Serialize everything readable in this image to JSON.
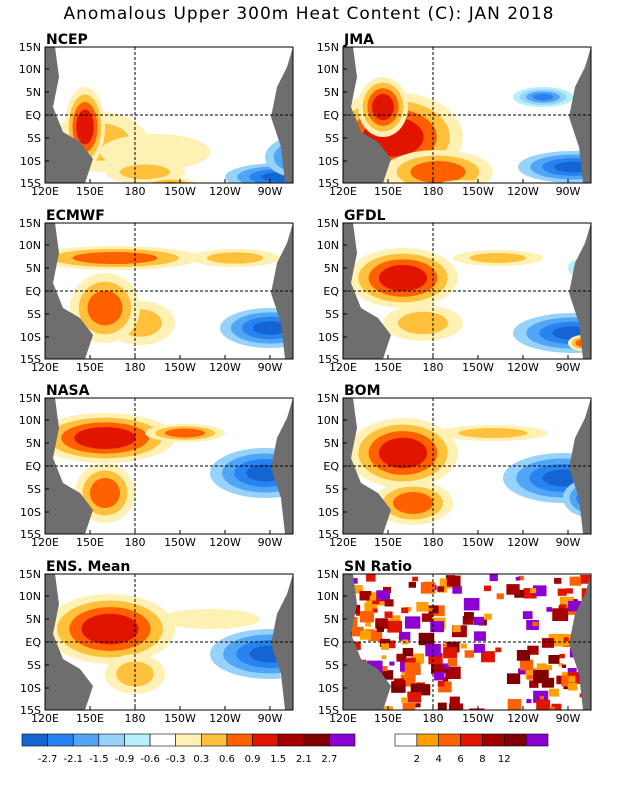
{
  "title": "Anomalous Upper 300m Heat Content (C): JAN 2018",
  "x_ticks": [
    "120E",
    "150E",
    "180",
    "150W",
    "120W",
    "90W"
  ],
  "y_ticks": [
    "15N",
    "10N",
    "5N",
    "EQ",
    "5S",
    "10S",
    "15S"
  ],
  "panels": [
    {
      "name": "NCEP",
      "kind": "anom",
      "warm": [
        [
          55,
          95,
          48,
          30,
          7
        ],
        [
          110,
          105,
          55,
          18,
          6
        ],
        [
          100,
          125,
          40,
          12,
          7
        ],
        [
          125,
          140,
          30,
          10,
          8
        ],
        [
          40,
          80,
          20,
          40,
          9
        ]
      ],
      "cold": [
        [
          235,
          130,
          55,
          14,
          7
        ],
        [
          260,
          110,
          40,
          22,
          6
        ]
      ]
    },
    {
      "name": "JMA",
      "kind": "anom",
      "warm": [
        [
          50,
          90,
          70,
          45,
          9
        ],
        [
          95,
          125,
          55,
          22,
          8
        ],
        [
          120,
          145,
          35,
          12,
          8
        ],
        [
          40,
          60,
          25,
          30,
          9
        ]
      ],
      "cold": [
        [
          230,
          120,
          55,
          16,
          6
        ],
        [
          200,
          50,
          30,
          10,
          5
        ]
      ]
    },
    {
      "name": "ECMWF",
      "kind": "anom",
      "warm": [
        [
          70,
          35,
          85,
          12,
          8
        ],
        [
          190,
          35,
          45,
          9,
          7
        ],
        [
          95,
          100,
          35,
          22,
          7
        ],
        [
          60,
          85,
          35,
          35,
          8
        ]
      ],
      "cold": [
        [
          225,
          105,
          50,
          20,
          6
        ],
        [
          270,
          60,
          20,
          25,
          5
        ]
      ]
    },
    {
      "name": "GFDL",
      "kind": "anom",
      "warm": [
        [
          60,
          55,
          55,
          30,
          9
        ],
        [
          155,
          35,
          45,
          8,
          7
        ],
        [
          80,
          100,
          40,
          18,
          7
        ],
        [
          240,
          120,
          15,
          8,
          8
        ]
      ],
      "cold": [
        [
          230,
          110,
          60,
          20,
          6
        ],
        [
          250,
          45,
          25,
          12,
          5
        ]
      ]
    },
    {
      "name": "NASA",
      "kind": "anom",
      "warm": [
        [
          60,
          40,
          70,
          25,
          9
        ],
        [
          140,
          35,
          40,
          9,
          8
        ],
        [
          60,
          95,
          30,
          30,
          8
        ]
      ],
      "cold": [
        [
          220,
          75,
          55,
          25,
          6
        ],
        [
          265,
          85,
          25,
          30,
          6
        ]
      ]
    },
    {
      "name": "BOM",
      "kind": "anom",
      "warm": [
        [
          60,
          55,
          55,
          35,
          9
        ],
        [
          150,
          35,
          55,
          8,
          7
        ],
        [
          70,
          105,
          40,
          22,
          8
        ]
      ],
      "cold": [
        [
          220,
          80,
          60,
          25,
          6
        ],
        [
          250,
          100,
          30,
          20,
          6
        ]
      ]
    },
    {
      "name": "ENS. Mean",
      "kind": "anom",
      "warm": [
        [
          65,
          55,
          65,
          35,
          9
        ],
        [
          165,
          45,
          50,
          10,
          6
        ],
        [
          90,
          100,
          30,
          20,
          7
        ]
      ],
      "cold": [
        [
          225,
          80,
          60,
          25,
          6
        ],
        [
          260,
          100,
          25,
          15,
          5
        ]
      ]
    },
    {
      "name": "SN Ratio",
      "kind": "sn"
    }
  ],
  "colorbar_anom": {
    "colors": [
      "#1464d2",
      "#2882f0",
      "#50a5f5",
      "#96d2fa",
      "#b4f0fa",
      "#ffffff",
      "#fff0b4",
      "#ffc03c",
      "#ff6000",
      "#e11400",
      "#a50000",
      "#800000",
      "#8c00d2"
    ],
    "labels": [
      "-2.7",
      "-2.1",
      "-1.5",
      "-0.9",
      "-0.6",
      "-0.3",
      "0.3",
      "0.6",
      "0.9",
      "1.5",
      "2.1",
      "2.7"
    ]
  },
  "colorbar_sn": {
    "colors": [
      "#ffffff",
      "#ffa000",
      "#ff6000",
      "#e11400",
      "#a50000",
      "#800000",
      "#8c00d2"
    ],
    "labels": [
      "2",
      "4",
      "6",
      "8",
      "12"
    ]
  },
  "colors": {
    "land": "#6e6e6e",
    "frame": "#000000"
  }
}
